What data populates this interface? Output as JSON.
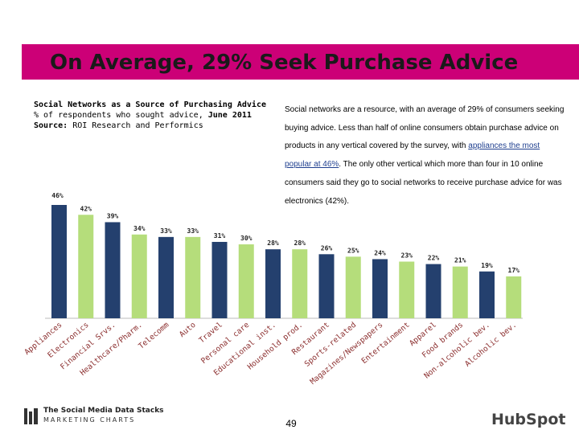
{
  "slide": {
    "title": "On Average, 29% Seek Purchase Advice",
    "page_number": "49",
    "accent_color": "#cc0077"
  },
  "chart_heading": {
    "title": "Social Networks as a Source of Purchasing Advice",
    "subtitle_prefix": "% of respondents who sought advice,",
    "subtitle_date": "June 2011",
    "source_label": "Source:",
    "source_value": "ROI Research and Performics"
  },
  "body": {
    "text_before_link": "Social networks are a resource, with an average of 29% of consumers seeking buying advice. Less than half of online consumers obtain purchase advice on products in any vertical covered by the survey, with",
    "link_text": "appliances the most popular at 46%",
    "text_after_link": ". The only other vertical which more than four in 10 online consumers said they go to social networks to receive purchase advice for was electronics (42%)."
  },
  "chart_data": {
    "type": "bar",
    "title": "Social Networks as a Source of Purchasing Advice",
    "xlabel": "",
    "ylabel": "% of respondents who sought advice",
    "ylim": [
      0,
      46
    ],
    "grid": false,
    "categories": [
      "Appliances",
      "Electronics",
      "Financial Srvs.",
      "Healthcare/Pharm.",
      "Telecomm",
      "Auto",
      "Travel",
      "Personal care",
      "Educational inst.",
      "Household prod.",
      "Restaurant",
      "Sports-related",
      "Magazines/Newspapers",
      "Entertainment",
      "Apparel",
      "Food brands",
      "Non-alcoholic bev.",
      "Alcoholic bev."
    ],
    "values": [
      46,
      42,
      39,
      34,
      33,
      33,
      31,
      30,
      28,
      28,
      26,
      25,
      24,
      23,
      22,
      21,
      19,
      17
    ],
    "value_labels": [
      "46%",
      "42%",
      "39%",
      "34%",
      "33%",
      "33%",
      "31%",
      "30%",
      "28%",
      "28%",
      "26%",
      "25%",
      "24%",
      "23%",
      "22%",
      "21%",
      "19%",
      "17%"
    ],
    "bar_colors": [
      "#24406e",
      "#b5dd7b",
      "#24406e",
      "#b5dd7b",
      "#24406e",
      "#b5dd7b",
      "#24406e",
      "#b5dd7b",
      "#24406e",
      "#b5dd7b",
      "#24406e",
      "#b5dd7b",
      "#24406e",
      "#b5dd7b",
      "#24406e",
      "#b5dd7b",
      "#24406e",
      "#b5dd7b"
    ],
    "category_label_color": "#8b2e2e"
  },
  "footer": {
    "stack_title": "The Social Media Data Stacks",
    "brand": "MARKETING CHARTS",
    "partner_logo": "HubSpot"
  }
}
